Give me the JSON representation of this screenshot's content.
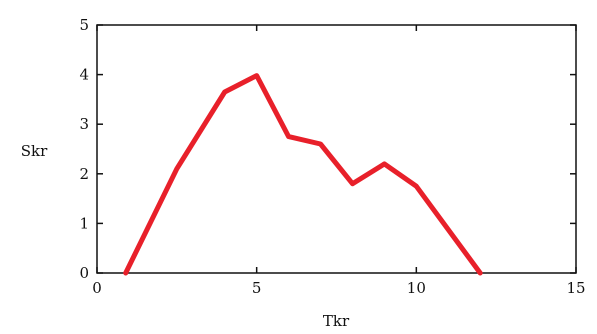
{
  "chart_data": {
    "type": "line",
    "xlabel": "Tkr",
    "ylabel": "Skr",
    "xlim": [
      0,
      15
    ],
    "ylim": [
      0,
      5
    ],
    "xticks": [
      0,
      5,
      10,
      15
    ],
    "yticks": [
      0,
      1,
      2,
      3,
      4,
      5
    ],
    "xtick_labels": [
      "0",
      "5",
      "10",
      "15"
    ],
    "ytick_labels": [
      "0",
      "1",
      "2",
      "3",
      "4",
      "5"
    ],
    "grid": false,
    "series": [
      {
        "color": "#e8202a",
        "x": [
          0.9,
          2.5,
          4.0,
          5.0,
          6.0,
          7.0,
          8.0,
          9.0,
          10.0,
          12.0
        ],
        "y": [
          0,
          2.1,
          3.65,
          3.98,
          2.75,
          2.6,
          1.8,
          2.2,
          1.75,
          0
        ]
      }
    ]
  }
}
